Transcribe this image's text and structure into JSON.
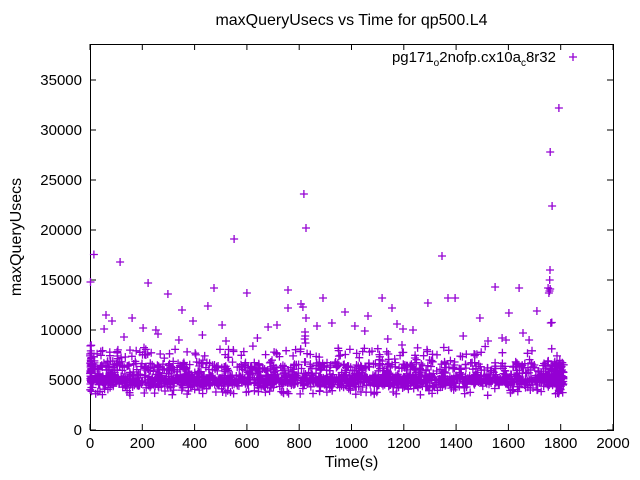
{
  "chart_data": {
    "type": "scatter",
    "title": "maxQueryUsecs vs Time for qp500.L4",
    "xlabel": "Time(s)",
    "ylabel": "maxQueryUsecs",
    "xlim": [
      0,
      2000
    ],
    "ylim": [
      0,
      38600
    ],
    "xticks": [
      0,
      200,
      400,
      600,
      800,
      1000,
      1200,
      1400,
      1600,
      1800,
      2000
    ],
    "yticks": [
      0,
      5000,
      10000,
      15000,
      20000,
      25000,
      30000,
      35000
    ],
    "grid": false,
    "legend": {
      "position": "top-right-inside",
      "marker": "+",
      "parts": [
        {
          "t": "pg171"
        },
        {
          "t": "o",
          "sub": true
        },
        {
          "t": "2nofp.cx10a"
        },
        {
          "t": "c",
          "sub": true
        },
        {
          "t": "8r32"
        }
      ]
    },
    "marker": {
      "shape": "plus",
      "color": "#9400D3",
      "size": 8
    },
    "points_outliers": [
      [
        15,
        17550
      ],
      [
        115,
        16800
      ],
      [
        2,
        14800
      ],
      [
        222,
        14700
      ],
      [
        298,
        13600
      ],
      [
        474,
        14200
      ],
      [
        600,
        13700
      ],
      [
        352,
        12000
      ],
      [
        451,
        12400
      ],
      [
        394,
        10900
      ],
      [
        61,
        11500
      ],
      [
        84,
        10900
      ],
      [
        161,
        11200
      ],
      [
        54,
        10100
      ],
      [
        203,
        10200
      ],
      [
        252,
        10000
      ],
      [
        505,
        10500
      ],
      [
        551,
        19100
      ],
      [
        818,
        23600
      ],
      [
        826,
        20200
      ],
      [
        757,
        14000
      ],
      [
        891,
        13200
      ],
      [
        1369,
        13200
      ],
      [
        1292,
        12700
      ],
      [
        1117,
        13200
      ],
      [
        807,
        12600
      ],
      [
        757,
        12200
      ],
      [
        814,
        12300
      ],
      [
        1155,
        12200
      ],
      [
        826,
        11200
      ],
      [
        975,
        11800
      ],
      [
        1063,
        11400
      ],
      [
        715,
        10500
      ],
      [
        681,
        10300
      ],
      [
        868,
        10400
      ],
      [
        925,
        10700
      ],
      [
        1013,
        10400
      ],
      [
        1051,
        9900
      ],
      [
        1174,
        10600
      ],
      [
        1197,
        10100
      ],
      [
        1235,
        10000
      ],
      [
        1346,
        17400
      ],
      [
        1767,
        22400
      ],
      [
        1793,
        32200
      ],
      [
        1760,
        27800
      ],
      [
        1759,
        16000
      ],
      [
        1758,
        15000
      ],
      [
        1752,
        14200
      ],
      [
        1757,
        13900
      ],
      [
        1755,
        13700
      ],
      [
        1760,
        14100
      ],
      [
        1549,
        14300
      ],
      [
        1641,
        14200
      ],
      [
        1396,
        13200
      ],
      [
        1602,
        11700
      ],
      [
        1709,
        11900
      ],
      [
        1491,
        11200
      ],
      [
        1762,
        10700
      ],
      [
        1766,
        10750
      ],
      [
        1427,
        9400
      ],
      [
        1522,
        8900
      ],
      [
        1576,
        9200
      ],
      [
        1591,
        9000
      ],
      [
        1656,
        9700
      ],
      [
        1679,
        9000
      ],
      [
        822,
        9800
      ],
      [
        823,
        9400
      ],
      [
        821,
        9100
      ],
      [
        824,
        8700
      ],
      [
        1139,
        9100
      ],
      [
        1193,
        8500
      ],
      [
        130,
        9300
      ],
      [
        260,
        9600
      ],
      [
        340,
        9000
      ],
      [
        430,
        9500
      ],
      [
        520,
        8900
      ],
      [
        640,
        9200
      ]
    ],
    "band": {
      "seed": 42,
      "count": 1900,
      "t_min": 0,
      "t_max": 1812,
      "layers": [
        {
          "p": 0.68,
          "lo": 4100,
          "hi": 5800
        },
        {
          "p": 0.22,
          "lo": 5500,
          "hi": 7100
        },
        {
          "p": 0.055,
          "lo": 6900,
          "hi": 8400
        },
        {
          "p": 0.045,
          "lo": 3400,
          "hi": 4250
        }
      ],
      "clusters": [
        {
          "count": 40,
          "t": [
            0,
            7
          ],
          "v": [
            3700,
            8800
          ]
        },
        {
          "count": 70,
          "t": [
            1775,
            1812
          ],
          "v": [
            3500,
            7200
          ]
        }
      ]
    }
  }
}
